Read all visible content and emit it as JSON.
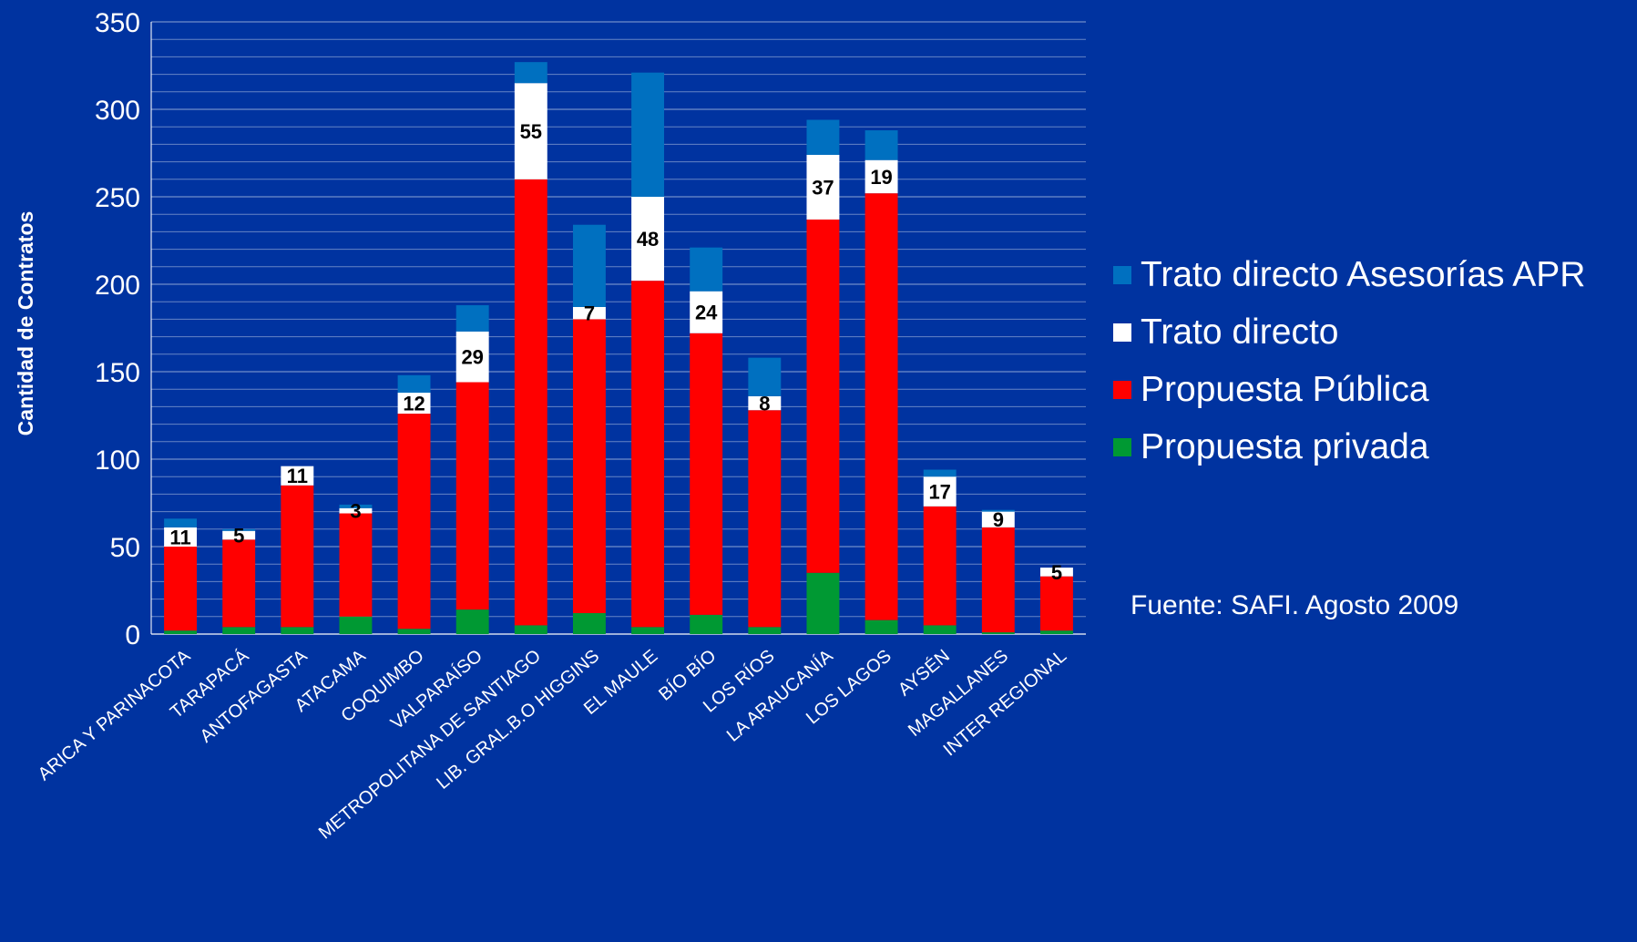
{
  "chart_data": {
    "type": "bar",
    "stacked": true,
    "ylabel": "Cantidad de Contratos",
    "xlabel": "",
    "ylim": [
      0,
      350
    ],
    "yticks": [
      0,
      50,
      100,
      150,
      200,
      250,
      300,
      350
    ],
    "categories": [
      "ARICA Y PARINACOTA",
      "TARAPACÁ",
      "ANTOFAGASTA",
      "ATACAMA",
      "COQUIMBO",
      "VALPARAÍSO",
      "METROPOLITANA DE SANTIAGO",
      "LIB. GRAL.B.O HIGGINS",
      "EL MAULE",
      "BÍO BÍO",
      "LOS RÍOS",
      "LA ARAUCANÍA",
      "LOS LAGOS",
      "AYSÉN",
      "MAGALLANES",
      "INTER REGIONAL"
    ],
    "series": [
      {
        "name": "Propuesta privada",
        "color": "#009933",
        "values": [
          2,
          4,
          4,
          10,
          3,
          14,
          5,
          12,
          4,
          11,
          4,
          35,
          8,
          5,
          1,
          2
        ]
      },
      {
        "name": "Propuesta Pública",
        "color": "#ff0000",
        "values": [
          48,
          50,
          81,
          59,
          123,
          130,
          255,
          168,
          198,
          161,
          124,
          202,
          244,
          68,
          60,
          31
        ]
      },
      {
        "name": "Trato directo",
        "color": "#ffffff",
        "values": [
          11,
          5,
          11,
          3,
          12,
          29,
          55,
          7,
          48,
          24,
          8,
          37,
          19,
          17,
          9,
          5
        ]
      },
      {
        "name": "Trato directo Asesorías APR",
        "color": "#0070c0",
        "values": [
          5,
          1,
          0,
          2,
          10,
          15,
          12,
          47,
          71,
          25,
          22,
          20,
          17,
          4,
          1,
          0
        ]
      }
    ],
    "data_labels_series": "Trato directo",
    "grid": true,
    "legend_position": "right",
    "legend_order": [
      "Trato directo Asesorías APR",
      "Trato directo",
      "Propuesta Pública",
      "Propuesta privada"
    ]
  },
  "source_note": "Fuente: SAFI. Agosto 2009"
}
